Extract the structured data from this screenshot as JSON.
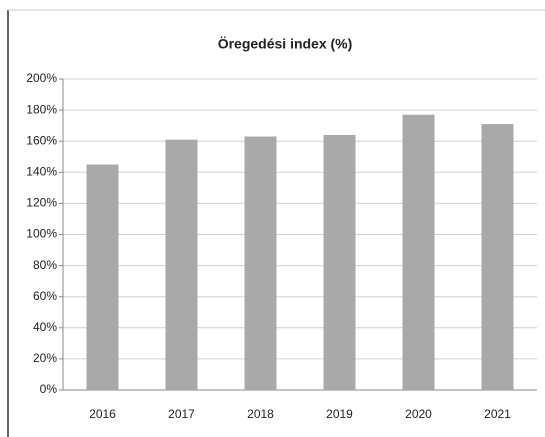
{
  "chart_data": {
    "type": "bar",
    "title": "Öregedési index (%)",
    "categories": [
      "2016",
      "2017",
      "2018",
      "2019",
      "2020",
      "2021"
    ],
    "values": [
      145,
      161,
      163,
      164,
      177,
      171
    ],
    "color": "#a9a9a9",
    "ylim": [
      0,
      200
    ],
    "yticks": [
      {
        "value": 0,
        "label": "0%"
      },
      {
        "value": 20,
        "label": "20%"
      },
      {
        "value": 40,
        "label": "40%"
      },
      {
        "value": 60,
        "label": "60%"
      },
      {
        "value": 80,
        "label": "80%"
      },
      {
        "value": 100,
        "label": "100%"
      },
      {
        "value": 120,
        "label": "120%"
      },
      {
        "value": 140,
        "label": "140%"
      },
      {
        "value": 160,
        "label": "160%"
      },
      {
        "value": 180,
        "label": "180%"
      },
      {
        "value": 200,
        "label": "200%"
      }
    ],
    "grid": true
  }
}
